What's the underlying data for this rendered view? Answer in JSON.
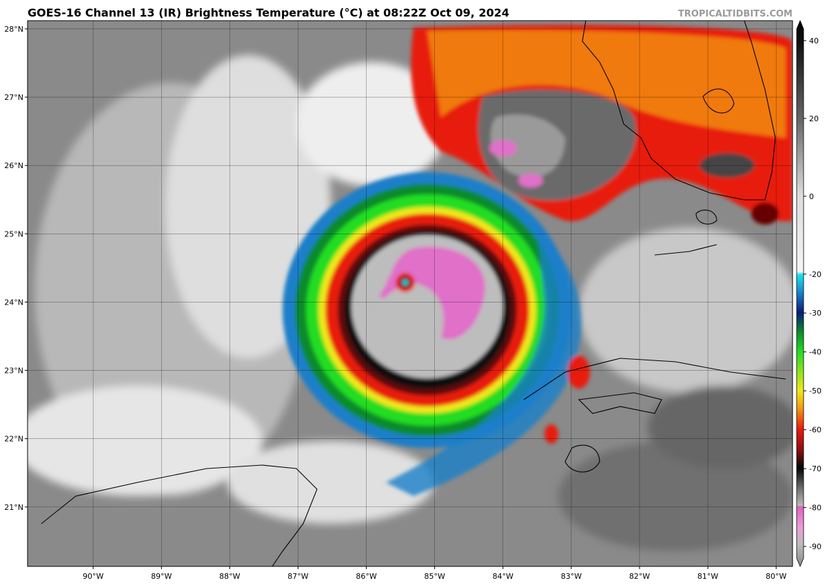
{
  "header": {
    "title": "GOES-16 Channel 13 (IR) Brightness Temperature (°C) at 08:22Z Oct 09, 2024",
    "credit": "TROPICALTIDBITS.COM"
  },
  "map": {
    "lat_lim": [
      20.13,
      28.12
    ],
    "lon_lim": [
      -90.96,
      -79.76
    ],
    "grid": true,
    "lat_ticks": [
      {
        "value": 28,
        "label": "28°N"
      },
      {
        "value": 27,
        "label": "27°N"
      },
      {
        "value": 26,
        "label": "26°N"
      },
      {
        "value": 25,
        "label": "25°N"
      },
      {
        "value": 24,
        "label": "24°N"
      },
      {
        "value": 23,
        "label": "23°N"
      },
      {
        "value": 22,
        "label": "22°N"
      },
      {
        "value": 21,
        "label": "21°N"
      }
    ],
    "lon_ticks": [
      {
        "value": -90,
        "label": "90°W"
      },
      {
        "value": -89,
        "label": "89°W"
      },
      {
        "value": -88,
        "label": "88°W"
      },
      {
        "value": -87,
        "label": "87°W"
      },
      {
        "value": -86,
        "label": "86°W"
      },
      {
        "value": -85,
        "label": "85°W"
      },
      {
        "value": -84,
        "label": "84°W"
      },
      {
        "value": -83,
        "label": "83°W"
      },
      {
        "value": -82,
        "label": "82°W"
      },
      {
        "value": -81,
        "label": "81°W"
      },
      {
        "value": -80,
        "label": "80°W"
      }
    ]
  },
  "colorbar": {
    "lim": [
      -93,
      43
    ],
    "ticks": [
      40,
      20,
      0,
      -20,
      -30,
      -40,
      -50,
      -60,
      -70,
      -80,
      -90
    ]
  }
}
